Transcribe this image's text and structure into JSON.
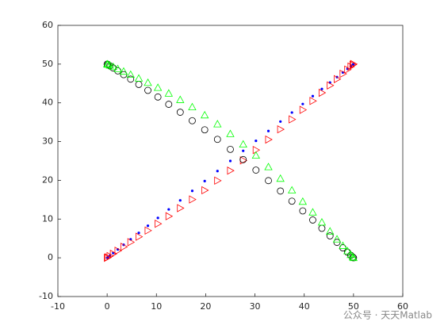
{
  "chart_data": {
    "type": "scatter",
    "x": [
      0,
      0.14,
      0.55,
      1.22,
      2.16,
      3.35,
      4.77,
      6.42,
      8.27,
      10.3,
      12.5,
      14.83,
      17.27,
      19.8,
      22.39,
      25,
      27.61,
      30.2,
      32.73,
      35.17,
      37.5,
      39.7,
      41.73,
      43.58,
      45.23,
      46.65,
      47.84,
      48.78,
      49.45,
      49.86,
      50
    ],
    "series": [
      {
        "color": "#0000ff",
        "marker": "dot",
        "values": [
          0,
          0.14,
          0.55,
          1.22,
          2.16,
          3.35,
          4.77,
          6.42,
          8.27,
          10.3,
          12.5,
          14.83,
          17.27,
          19.8,
          22.39,
          25,
          27.61,
          30.2,
          32.73,
          35.17,
          37.5,
          39.7,
          41.73,
          43.58,
          45.23,
          46.65,
          47.84,
          48.78,
          49.45,
          49.86,
          50
        ]
      },
      {
        "color": "#ff0000",
        "marker": "triangle-right",
        "values": [
          0,
          0.12,
          0.46,
          1.03,
          1.82,
          2.83,
          4.03,
          5.44,
          7.03,
          8.79,
          10.73,
          12.82,
          15.06,
          17.43,
          19.92,
          22.5,
          25.14,
          27.83,
          30.52,
          33.16,
          35.73,
          38.19,
          40.49,
          42.6,
          44.49,
          46.13,
          47.5,
          48.59,
          49.36,
          49.84,
          50
        ]
      },
      {
        "color": "#000000",
        "marker": "circle",
        "values": [
          50,
          49.89,
          49.55,
          49.01,
          48.25,
          47.28,
          46.12,
          44.76,
          43.22,
          41.51,
          39.62,
          37.58,
          35.38,
          33.04,
          30.57,
          28,
          25.35,
          22.64,
          19.92,
          17.24,
          14.62,
          12.11,
          9.76,
          7.6,
          5.66,
          3.98,
          2.57,
          1.45,
          0.65,
          0.17,
          0
        ]
      },
      {
        "color": "#00ff00",
        "marker": "triangle-up",
        "values": [
          50,
          49.92,
          49.69,
          49.32,
          48.79,
          48.11,
          47.3,
          46.33,
          45.21,
          43.92,
          42.45,
          40.79,
          38.92,
          36.83,
          34.52,
          32,
          29.3,
          26.43,
          23.46,
          20.45,
          17.45,
          14.52,
          11.75,
          9.17,
          6.84,
          4.81,
          3.11,
          1.76,
          0.79,
          0.2,
          0
        ]
      }
    ],
    "xlim": [
      -10,
      60
    ],
    "xticks": [
      -10,
      0,
      10,
      20,
      30,
      40,
      50,
      60
    ],
    "ylim": [
      -10,
      60
    ],
    "yticks": [
      -10,
      0,
      10,
      20,
      30,
      40,
      50,
      60
    ],
    "watermark": "公众号 · 天天Matlab"
  }
}
